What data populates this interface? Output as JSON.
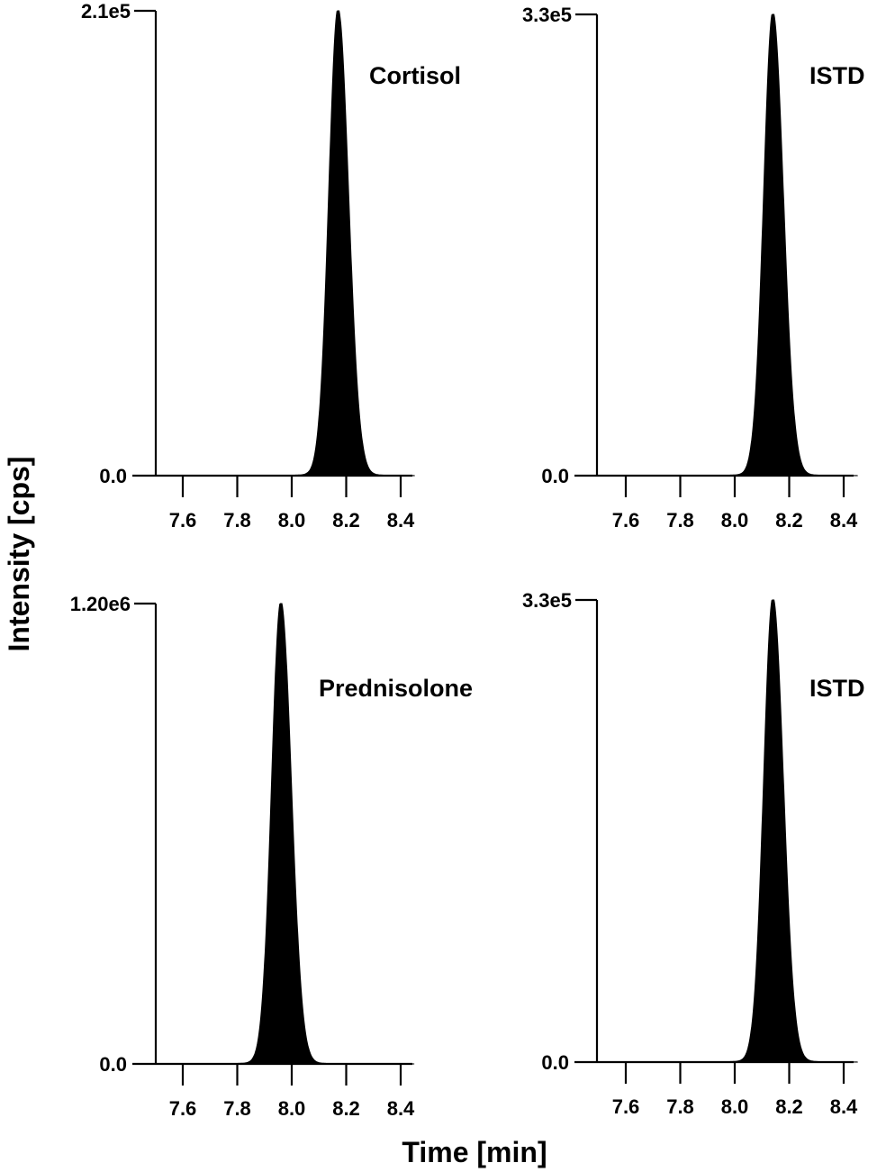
{
  "figure": {
    "ylabel": "Intensity [cps]",
    "xlabel": "Time [min]"
  },
  "chart_data": [
    {
      "type": "area",
      "title": "Cortisol",
      "xlabel": "Time [min]",
      "ylabel": "Intensity [cps]",
      "x_ticks": [
        "7.6",
        "7.8",
        "8.0",
        "8.2",
        "8.4"
      ],
      "y_ticks": [
        "0.0",
        "2.1e5"
      ],
      "xlim": [
        7.52,
        8.45
      ],
      "ylim": [
        0,
        210000
      ],
      "peak": {
        "retention_time": 8.17,
        "max_intensity": 210000,
        "sigma": 0.036
      },
      "series": [
        {
          "name": "Cortisol",
          "x": [
            7.52,
            7.95,
            8.0,
            8.05,
            8.1,
            8.15,
            8.17,
            8.2,
            8.25,
            8.3,
            8.45
          ],
          "y": [
            0,
            1000,
            4000,
            24000,
            84000,
            180000,
            210000,
            184000,
            78000,
            8000,
            0
          ]
        }
      ]
    },
    {
      "type": "area",
      "title": "ISTD",
      "xlabel": "Time [min]",
      "ylabel": "Intensity [cps]",
      "x_ticks": [
        "7.6",
        "7.8",
        "8.0",
        "8.2",
        "8.4"
      ],
      "y_ticks": [
        "0.0",
        "3.3e5"
      ],
      "xlim": [
        7.52,
        8.45
      ],
      "ylim": [
        0,
        330000
      ],
      "peak": {
        "retention_time": 8.14,
        "max_intensity": 330000,
        "sigma": 0.036
      },
      "series": [
        {
          "name": "ISTD",
          "x": [
            7.52,
            7.95,
            8.0,
            8.05,
            8.1,
            8.14,
            8.18,
            8.22,
            8.27,
            8.45
          ],
          "y": [
            0,
            1500,
            12000,
            80000,
            240000,
            330000,
            260000,
            100000,
            12000,
            0
          ]
        }
      ]
    },
    {
      "type": "area",
      "title": "Prednisolone",
      "xlabel": "Time [min]",
      "ylabel": "Intensity [cps]",
      "x_ticks": [
        "7.6",
        "7.8",
        "8.0",
        "8.2",
        "8.4"
      ],
      "y_ticks": [
        "0.0",
        "1.20e6"
      ],
      "xlim": [
        7.52,
        8.45
      ],
      "ylim": [
        0,
        1200000
      ],
      "peak": {
        "retention_time": 7.96,
        "max_intensity": 1200000,
        "sigma": 0.036
      },
      "series": [
        {
          "name": "Prednisolone",
          "x": [
            7.52,
            7.78,
            7.83,
            7.88,
            7.93,
            7.96,
            8.0,
            8.04,
            8.09,
            8.45
          ],
          "y": [
            0,
            3000,
            40000,
            300000,
            950000,
            1200000,
            1000000,
            420000,
            40000,
            0
          ]
        }
      ]
    },
    {
      "type": "area",
      "title": "ISTD",
      "xlabel": "Time [min]",
      "ylabel": "Intensity [cps]",
      "x_ticks": [
        "7.6",
        "7.8",
        "8.0",
        "8.2",
        "8.4"
      ],
      "y_ticks": [
        "0.0",
        "3.3e5"
      ],
      "xlim": [
        7.52,
        8.45
      ],
      "ylim": [
        0,
        330000
      ],
      "peak": {
        "retention_time": 8.14,
        "max_intensity": 330000,
        "sigma": 0.036
      },
      "series": [
        {
          "name": "ISTD",
          "x": [
            7.52,
            7.95,
            8.0,
            8.05,
            8.1,
            8.14,
            8.18,
            8.22,
            8.27,
            8.45
          ],
          "y": [
            0,
            1500,
            12000,
            80000,
            240000,
            330000,
            260000,
            100000,
            12000,
            0
          ]
        }
      ]
    }
  ],
  "panels": [
    {
      "label": "Cortisol",
      "ymax_label": "2.1e5",
      "ymin_label": "0.0",
      "xticks": [
        "7.6",
        "7.8",
        "8.0",
        "8.2",
        "8.4"
      ]
    },
    {
      "label": "ISTD",
      "ymax_label": "3.3e5",
      "ymin_label": "0.0",
      "xticks": [
        "7.6",
        "7.8",
        "8.0",
        "8.2",
        "8.4"
      ]
    },
    {
      "label": "Prednisolone",
      "ymax_label": "1.20e6",
      "ymin_label": "0.0",
      "xticks": [
        "7.6",
        "7.8",
        "8.0",
        "8.2",
        "8.4"
      ]
    },
    {
      "label": "ISTD",
      "ymax_label": "3.3e5",
      "ymin_label": "0.0",
      "xticks": [
        "7.6",
        "7.8",
        "8.0",
        "8.2",
        "8.4"
      ]
    }
  ]
}
